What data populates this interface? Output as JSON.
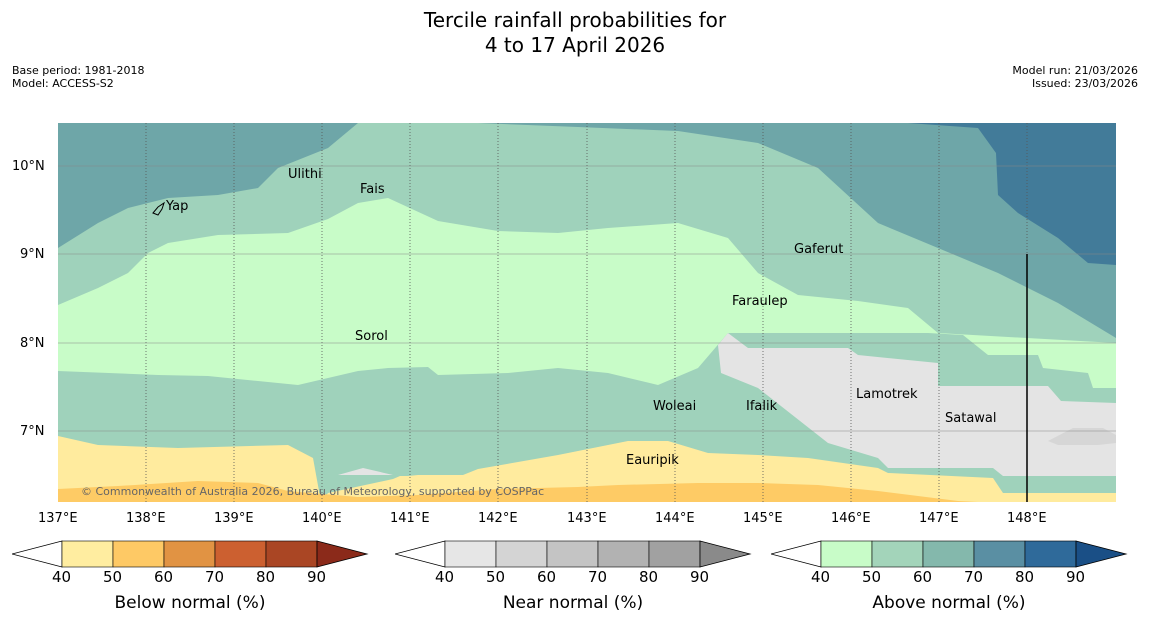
{
  "title_line1": "Tercile rainfall probabilities for",
  "title_line2": "4 to 17 April 2026",
  "meta_left": [
    "Base period: 1981-2018",
    "Model: ACCESS-S2"
  ],
  "meta_right": [
    "Model run: 21/03/2026",
    "Issued: 23/03/2026"
  ],
  "copyright": "© Commonwealth of Australia 2026, Bureau of Meteorology, supported by COSPPac",
  "lon_labels": [
    "137°E",
    "138°E",
    "139°E",
    "140°E",
    "141°E",
    "142°E",
    "143°E",
    "144°E",
    "145°E",
    "146°E",
    "147°E",
    "148°E"
  ],
  "lat_labels": [
    "10°N",
    "9°N",
    "8°N",
    "7°N"
  ],
  "places": [
    "Yap",
    "Ulithi",
    "Fais",
    "Gaferut",
    "Faraulep",
    "Sorol",
    "Woleai",
    "Ifalik",
    "Lamotrek",
    "Satawal",
    "Eauripik"
  ],
  "colorbars": [
    {
      "label": "Below normal (%)",
      "ticks": [
        "40",
        "50",
        "60",
        "70",
        "80",
        "90"
      ],
      "colors": [
        "#ffffff",
        "#ffeda0",
        "#fec965",
        "#e19343",
        "#cc6030",
        "#aa4624",
        "#8b2a1a"
      ]
    },
    {
      "label": "Near normal (%)",
      "ticks": [
        "40",
        "50",
        "60",
        "70",
        "80",
        "90"
      ],
      "colors": [
        "#ffffff",
        "#e6e6e6",
        "#d4d4d4",
        "#c4c4c4",
        "#b2b2b2",
        "#a1a1a1",
        "#8a8a8a"
      ]
    },
    {
      "label": "Above normal (%)",
      "ticks": [
        "40",
        "50",
        "60",
        "70",
        "80",
        "90"
      ],
      "colors": [
        "#ffffff",
        "#c8fcc8",
        "#a3d4ba",
        "#84b8ac",
        "#5a8fa3",
        "#2f6a9a",
        "#1a4f86"
      ]
    }
  ],
  "map_colors": {
    "above40": "#c8fcc8",
    "above50": "#9fd2bb",
    "above60": "#6ea6a8",
    "above70": "#427b99",
    "near40": "#e4e4e4",
    "near50": "#d6d6d6",
    "below40": "#ffeb9e",
    "below50": "#fecb65"
  }
}
